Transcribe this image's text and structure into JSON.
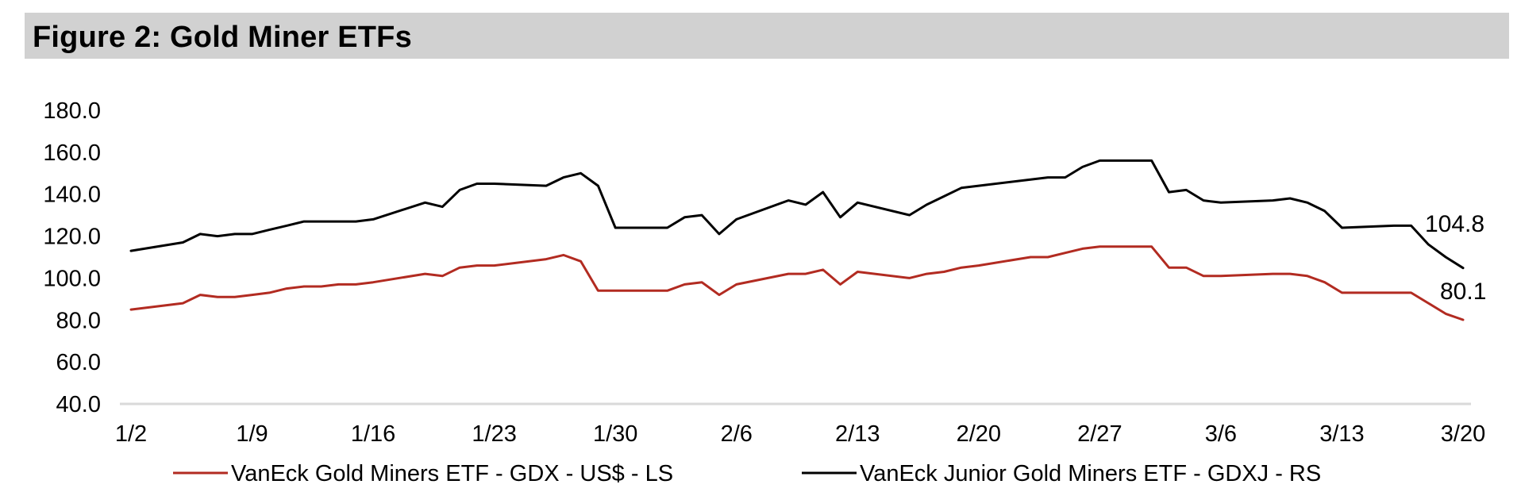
{
  "figure": {
    "title": "Figure 2: Gold Miner ETFs"
  },
  "chart_data": {
    "type": "line",
    "title": "Figure 2: Gold Miner ETFs",
    "xlabel": "",
    "ylabel": "",
    "ylim": [
      40,
      180
    ],
    "y_ticks": [
      "40.0",
      "60.0",
      "80.0",
      "100.0",
      "120.0",
      "140.0",
      "160.0",
      "180.0"
    ],
    "x_tick_labels": [
      "1/2",
      "1/9",
      "1/16",
      "1/23",
      "1/30",
      "2/6",
      "2/13",
      "2/20",
      "2/27",
      "3/6",
      "3/13",
      "3/20"
    ],
    "x_tick_day_index": [
      0,
      7,
      14,
      21,
      28,
      35,
      42,
      49,
      56,
      63,
      70,
      77
    ],
    "x_range": [
      0,
      77
    ],
    "grid": false,
    "legend_position": "bottom",
    "series": [
      {
        "name": "VanEck Gold Miners ETF  - GDX  - US$ - LS",
        "color": "#b22b21",
        "end_label": "80.1",
        "x": [
          0,
          3,
          4,
          5,
          6,
          7,
          8,
          9,
          10,
          11,
          12,
          13,
          14,
          17,
          18,
          19,
          20,
          21,
          24,
          25,
          26,
          27,
          28,
          31,
          32,
          33,
          34,
          35,
          38,
          39,
          40,
          41,
          42,
          45,
          46,
          47,
          48,
          49,
          52,
          53,
          54,
          55,
          56,
          59,
          60,
          61,
          62,
          63,
          66,
          67,
          68,
          69,
          70,
          73,
          74,
          75,
          76,
          77
        ],
        "values": [
          85,
          88,
          92,
          91,
          91,
          92,
          93,
          95,
          96,
          96,
          97,
          97,
          98,
          102,
          101,
          105,
          106,
          106,
          109,
          111,
          108,
          94,
          94,
          94,
          97,
          98,
          92,
          97,
          102,
          102,
          104,
          97,
          103,
          100,
          102,
          103,
          105,
          106,
          110,
          110,
          112,
          114,
          115,
          115,
          105,
          105,
          101,
          101,
          102,
          102,
          101,
          98,
          93,
          93,
          93,
          88,
          83,
          80.1
        ]
      },
      {
        "name": "VanEck Junior Gold Miners ETF - GDXJ - RS",
        "color": "#000000",
        "end_label": "104.8",
        "x": [
          0,
          3,
          4,
          5,
          6,
          7,
          8,
          9,
          10,
          11,
          12,
          13,
          14,
          17,
          18,
          19,
          20,
          21,
          24,
          25,
          26,
          27,
          28,
          31,
          32,
          33,
          34,
          35,
          38,
          39,
          40,
          41,
          42,
          45,
          46,
          47,
          48,
          49,
          52,
          53,
          54,
          55,
          56,
          59,
          60,
          61,
          62,
          63,
          66,
          67,
          68,
          69,
          70,
          73,
          74,
          75,
          76,
          77
        ],
        "values": [
          113,
          117,
          121,
          120,
          121,
          121,
          123,
          125,
          127,
          127,
          127,
          127,
          128,
          136,
          134,
          142,
          145,
          145,
          144,
          148,
          150,
          144,
          124,
          124,
          129,
          130,
          121,
          128,
          137,
          135,
          141,
          129,
          136,
          130,
          135,
          139,
          143,
          144,
          147,
          148,
          148,
          153,
          156,
          156,
          141,
          142,
          137,
          136,
          137,
          138,
          136,
          132,
          124,
          125,
          125,
          116,
          110,
          104.8
        ]
      }
    ]
  }
}
